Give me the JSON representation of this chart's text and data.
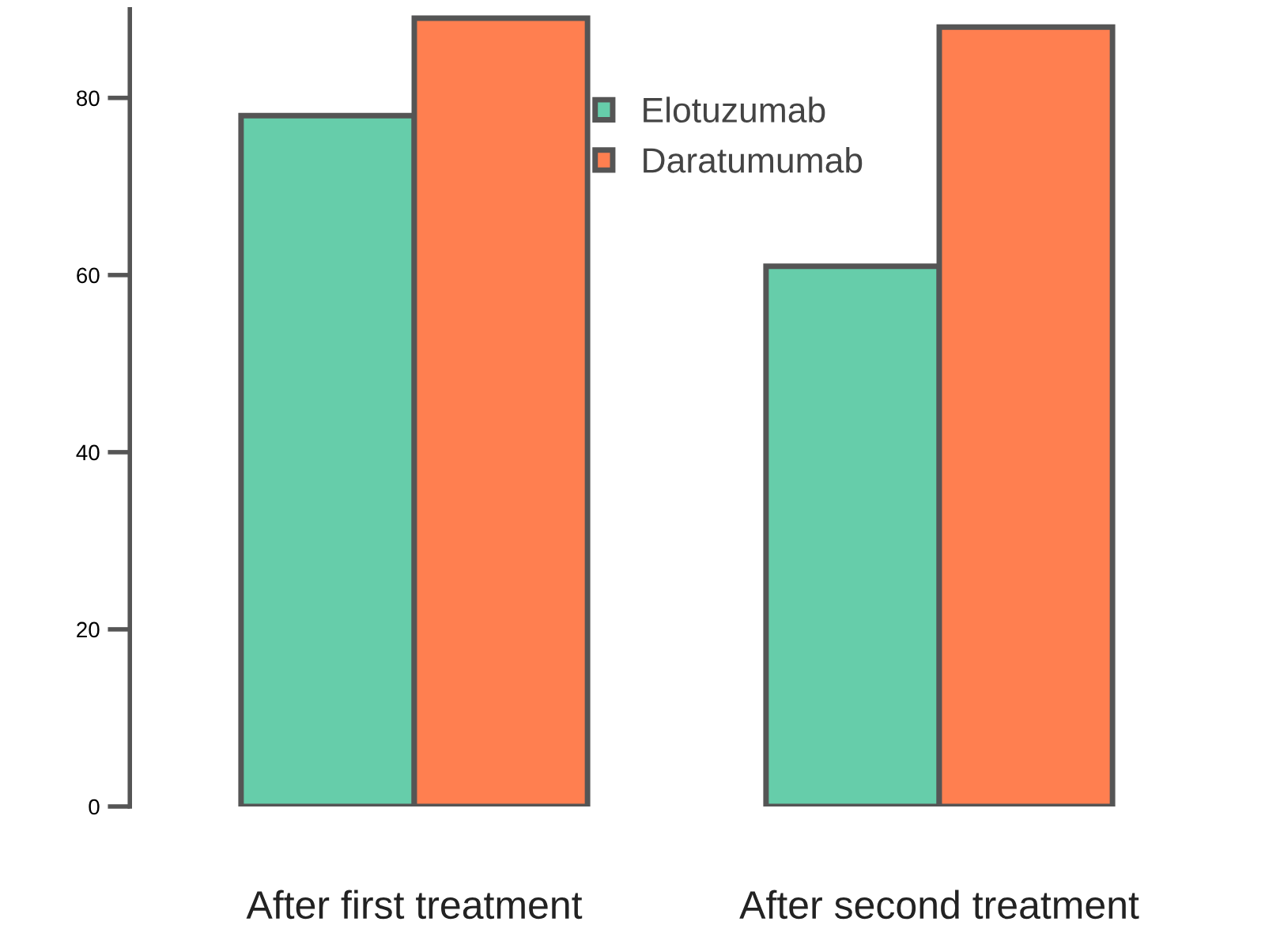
{
  "chart_data": {
    "type": "bar",
    "categories": [
      "After first treatment",
      "After second treatment"
    ],
    "series": [
      {
        "name": "Elotuzumab",
        "color": "#66cdaa",
        "values": [
          78,
          61
        ]
      },
      {
        "name": "Daratumumab",
        "color": "#ff7f50",
        "values": [
          89,
          88
        ]
      }
    ],
    "ylim": [
      0,
      90
    ],
    "yticks": [
      0,
      20,
      40,
      60,
      80
    ],
    "grid": false,
    "legend": "top"
  }
}
